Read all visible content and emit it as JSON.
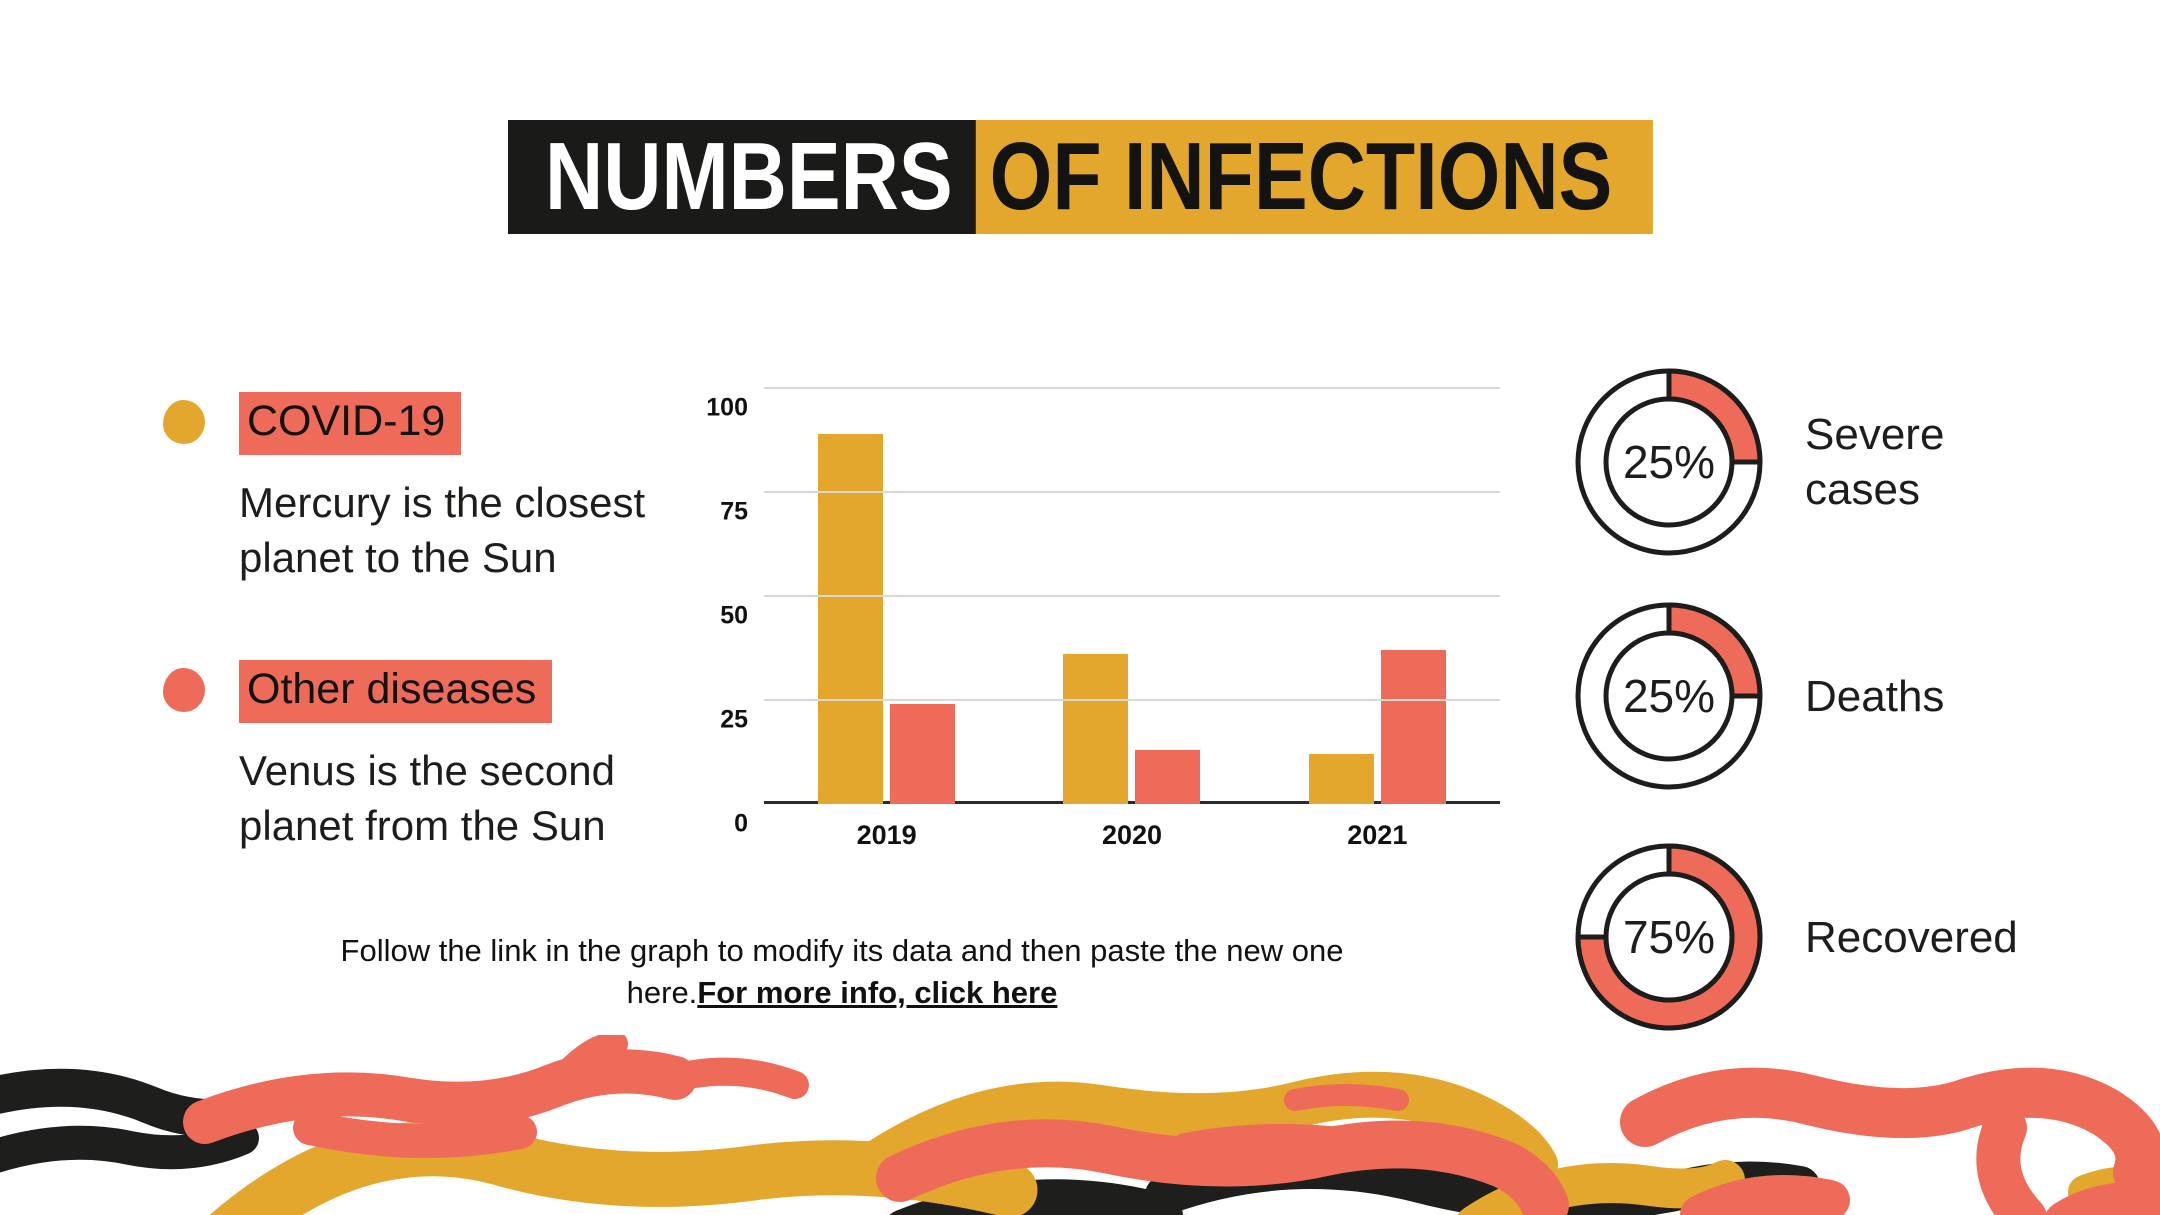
{
  "title": {
    "part1": "NUMBERS",
    "part2": "OF INFECTIONS"
  },
  "legend": [
    {
      "label": "COVID-19",
      "description": "Mercury is the closest planet to the Sun",
      "bullet_color": "#e3a72e"
    },
    {
      "label": "Other diseases",
      "description": "Venus is the second planet from the Sun",
      "bullet_color": "#ee6b5a"
    }
  ],
  "chart_data": {
    "type": "bar",
    "categories": [
      "2019",
      "2020",
      "2021"
    ],
    "series": [
      {
        "name": "COVID-19",
        "color": "#e3a72e",
        "values": [
          89,
          36,
          12
        ]
      },
      {
        "name": "Other diseases",
        "color": "#ee6b5a",
        "values": [
          24,
          13,
          37
        ]
      }
    ],
    "title": "",
    "xlabel": "",
    "ylabel": "",
    "ylim": [
      0,
      100
    ],
    "yticks": [
      0,
      25,
      50,
      75,
      100
    ],
    "grid": true,
    "legend_position": "external-left"
  },
  "donuts": [
    {
      "percent": 25,
      "label": "Severe cases"
    },
    {
      "percent": 25,
      "label": "Deaths"
    },
    {
      "percent": 75,
      "label": "Recovered"
    }
  ],
  "footer": {
    "text": "Follow the link in the graph to modify its data and then paste the new one here.",
    "link_text": "For more info, click here"
  },
  "colors": {
    "yellow": "#e3a72e",
    "red": "#ee6b5a",
    "black": "#1d1d1b",
    "highlight": "#ee6b5a",
    "gridline": "#d9d9d9",
    "title_black_bg": "#1a1a18",
    "title_yellow_bg": "#e3a72e"
  }
}
